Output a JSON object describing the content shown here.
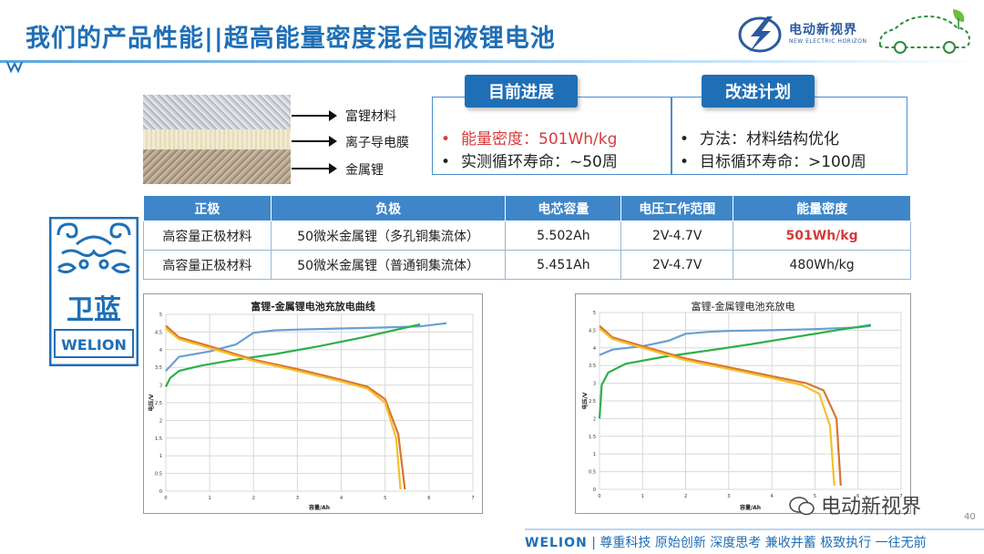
{
  "title": "我们的产品性能||超高能量密度混合固液锂电池",
  "brand": {
    "name": "电动新视界",
    "sub": "NEW ELECTRIC HORIZON",
    "watermark": "电动新视界"
  },
  "layers": [
    {
      "label": "富锂材料"
    },
    {
      "label": "离子导电膜"
    },
    {
      "label": "金属锂"
    }
  ],
  "progress": {
    "tag": "目前进展",
    "items": [
      "能量密度：501Wh/kg",
      "实测循环寿命：~50周"
    ]
  },
  "plan": {
    "tag": "改进计划",
    "items": [
      "方法：材料结构优化",
      "目标循环寿命：>100周"
    ]
  },
  "table": {
    "headers": [
      "正极",
      "负极",
      "电芯容量",
      "电压工作范围",
      "能量密度"
    ],
    "rows": [
      [
        "高容量正极材料",
        "50微米金属锂（多孔铜集流体）",
        "5.502Ah",
        "2V-4.7V",
        "501Wh/kg"
      ],
      [
        "高容量正极材料",
        "50微米金属锂（普通铜集流体）",
        "5.451Ah",
        "2V-4.7V",
        "480Wh/kg"
      ]
    ]
  },
  "welion_logo": {
    "cn": "卫蓝",
    "en": "WELION"
  },
  "chart_data": [
    {
      "type": "line",
      "title": "富锂-金属锂电池充放电曲线",
      "xlabel": "容量/Ah",
      "ylabel": "电压/V",
      "xlim": [
        0,
        7
      ],
      "ylim": [
        0,
        5
      ],
      "xticks": [
        "0",
        "1",
        "2",
        "3",
        "4",
        "5",
        "6",
        "7"
      ],
      "yticks": [
        "0",
        "0.5",
        "1",
        "1.5",
        "2",
        "2.5",
        "3",
        "3.5",
        "4",
        "4.5",
        "5"
      ],
      "series": [
        {
          "color": "#6a9fd4",
          "x": [
            0,
            0.3,
            1.0,
            1.6,
            2.0,
            2.5,
            3.0,
            4.0,
            5.0,
            5.8,
            6.4
          ],
          "y": [
            3.4,
            3.8,
            3.95,
            4.15,
            4.48,
            4.55,
            4.57,
            4.6,
            4.63,
            4.66,
            4.75
          ]
        },
        {
          "color": "#2db04b",
          "x": [
            0,
            0.1,
            0.3,
            0.8,
            1.5,
            2.5,
            3.5,
            4.5,
            5.2,
            5.8
          ],
          "y": [
            2.95,
            3.2,
            3.4,
            3.55,
            3.7,
            3.88,
            4.1,
            4.35,
            4.55,
            4.72
          ]
        },
        {
          "color": "#d9752f",
          "x": [
            0,
            0.3,
            1.0,
            2.0,
            3.0,
            4.0,
            4.6,
            5.0,
            5.3,
            5.45
          ],
          "y": [
            4.68,
            4.35,
            4.1,
            3.72,
            3.45,
            3.15,
            2.95,
            2.6,
            1.6,
            0.05
          ]
        },
        {
          "color": "#f2c02e",
          "x": [
            0,
            0.3,
            1.0,
            2.0,
            3.0,
            4.0,
            4.6,
            5.0,
            5.25,
            5.35
          ],
          "y": [
            4.6,
            4.3,
            4.05,
            3.68,
            3.4,
            3.1,
            2.9,
            2.5,
            1.5,
            0.05
          ]
        }
      ]
    },
    {
      "type": "line",
      "title": "富锂-金属锂电池充放电",
      "xlabel": "容量/Ah",
      "ylabel": "电压/V",
      "xlim": [
        0,
        7
      ],
      "ylim": [
        0,
        5
      ],
      "xticks": [
        "0",
        "1",
        "2",
        "3",
        "4",
        "5",
        "6",
        "7"
      ],
      "yticks": [
        "0",
        "0.5",
        "1",
        "1.5",
        "2",
        "2.5",
        "3",
        "3.5",
        "4",
        "4.5",
        "5"
      ],
      "series": [
        {
          "color": "#6a9fd4",
          "x": [
            0,
            0.3,
            1.0,
            1.6,
            2.0,
            2.5,
            3.0,
            4.0,
            5.0,
            6.0,
            6.3
          ],
          "y": [
            3.8,
            3.95,
            4.05,
            4.2,
            4.4,
            4.45,
            4.48,
            4.5,
            4.53,
            4.58,
            4.62
          ]
        },
        {
          "color": "#2db04b",
          "x": [
            0,
            0.05,
            0.2,
            0.6,
            1.5,
            2.5,
            3.5,
            4.5,
            5.5,
            6.3
          ],
          "y": [
            2.0,
            2.95,
            3.3,
            3.55,
            3.75,
            3.92,
            4.1,
            4.3,
            4.5,
            4.65
          ]
        },
        {
          "color": "#d9752f",
          "x": [
            0,
            0.3,
            1.0,
            2.0,
            3.0,
            4.0,
            4.8,
            5.2,
            5.5,
            5.6
          ],
          "y": [
            4.62,
            4.3,
            4.05,
            3.7,
            3.45,
            3.2,
            3.0,
            2.8,
            2.0,
            0.1
          ]
        },
        {
          "color": "#f2c02e",
          "x": [
            0,
            0.3,
            1.0,
            2.0,
            3.0,
            4.0,
            4.7,
            5.1,
            5.35,
            5.45
          ],
          "y": [
            4.55,
            4.25,
            4.0,
            3.65,
            3.4,
            3.15,
            2.95,
            2.7,
            1.8,
            0.1
          ]
        }
      ]
    }
  ],
  "footer": {
    "brand": "WELION",
    "slogan": "尊重科技  原始创新  深度思考  兼收并蓄  极致执行  一往无前"
  },
  "page_number": "40"
}
